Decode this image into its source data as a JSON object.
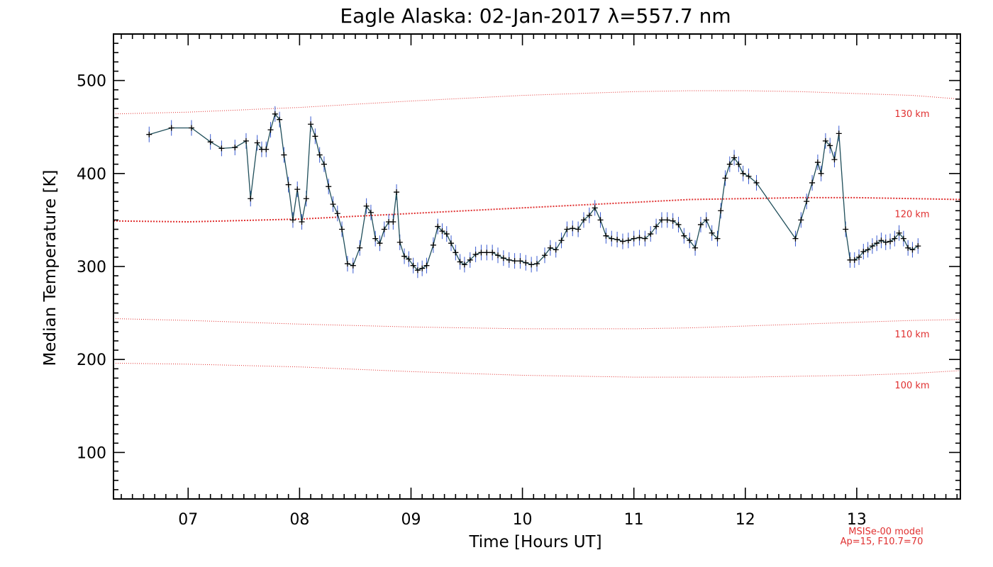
{
  "chart_data": {
    "type": "line",
    "title": "Eagle Alaska: 02-Jan-2017 λ=557.7 nm",
    "xlabel": "Time [Hours UT]",
    "ylabel": "Median Temperature [K]",
    "xlim": [
      6.33,
      13.93
    ],
    "ylim": [
      50,
      550
    ],
    "x_ticks": [
      7,
      8,
      9,
      10,
      11,
      12,
      13
    ],
    "x_tick_labels": [
      "07",
      "08",
      "09",
      "10",
      "11",
      "12",
      "13"
    ],
    "y_ticks": [
      100,
      200,
      300,
      400,
      500
    ],
    "y_tick_labels": [
      "100",
      "200",
      "300",
      "400",
      "500"
    ],
    "grid": false,
    "colors": {
      "data_line": "#1f4e5a",
      "error_bar": "#3a5bd0",
      "model_line": "#e03030",
      "marker": "#000000"
    },
    "series": [
      {
        "points": [
          [
            6.65,
            442
          ],
          [
            6.85,
            449
          ],
          [
            7.03,
            449
          ],
          [
            7.2,
            434
          ],
          [
            7.3,
            427
          ],
          [
            7.42,
            428
          ],
          [
            7.52,
            435
          ],
          [
            7.56,
            373
          ],
          [
            7.62,
            433
          ],
          [
            7.66,
            426
          ],
          [
            7.7,
            426
          ],
          [
            7.74,
            447
          ],
          [
            7.78,
            464
          ],
          [
            7.82,
            458
          ],
          [
            7.86,
            420
          ],
          [
            7.9,
            388
          ],
          [
            7.94,
            350
          ],
          [
            7.98,
            383
          ],
          [
            8.02,
            348
          ],
          [
            8.06,
            373
          ],
          [
            8.1,
            453
          ],
          [
            8.14,
            440
          ],
          [
            8.18,
            420
          ],
          [
            8.22,
            410
          ],
          [
            8.26,
            386
          ],
          [
            8.3,
            367
          ],
          [
            8.34,
            357
          ],
          [
            8.38,
            340
          ],
          [
            8.43,
            303
          ],
          [
            8.48,
            301
          ],
          [
            8.54,
            320
          ],
          [
            8.6,
            365
          ],
          [
            8.64,
            358
          ],
          [
            8.68,
            330
          ],
          [
            8.72,
            325
          ],
          [
            8.76,
            340
          ],
          [
            8.8,
            348
          ],
          [
            8.84,
            348
          ],
          [
            8.87,
            380
          ],
          [
            8.9,
            326
          ],
          [
            8.94,
            311
          ],
          [
            8.98,
            308
          ],
          [
            9.02,
            301
          ],
          [
            9.06,
            296
          ],
          [
            9.1,
            298
          ],
          [
            9.14,
            301
          ],
          [
            9.2,
            323
          ],
          [
            9.24,
            343
          ],
          [
            9.28,
            338
          ],
          [
            9.32,
            335
          ],
          [
            9.36,
            325
          ],
          [
            9.4,
            315
          ],
          [
            9.44,
            305
          ],
          [
            9.48,
            302
          ],
          [
            9.53,
            307
          ],
          [
            9.58,
            313
          ],
          [
            9.63,
            315
          ],
          [
            9.68,
            315
          ],
          [
            9.73,
            315
          ],
          [
            9.78,
            312
          ],
          [
            9.83,
            309
          ],
          [
            9.88,
            307
          ],
          [
            9.93,
            306
          ],
          [
            9.98,
            306
          ],
          [
            10.03,
            304
          ],
          [
            10.08,
            302
          ],
          [
            10.13,
            303
          ],
          [
            10.2,
            312
          ],
          [
            10.25,
            320
          ],
          [
            10.3,
            318
          ],
          [
            10.35,
            328
          ],
          [
            10.4,
            340
          ],
          [
            10.45,
            341
          ],
          [
            10.5,
            340
          ],
          [
            10.55,
            350
          ],
          [
            10.6,
            355
          ],
          [
            10.65,
            363
          ],
          [
            10.7,
            350
          ],
          [
            10.75,
            333
          ],
          [
            10.8,
            330
          ],
          [
            10.85,
            329
          ],
          [
            10.9,
            327
          ],
          [
            10.95,
            328
          ],
          [
            11.0,
            330
          ],
          [
            11.05,
            331
          ],
          [
            11.1,
            330
          ],
          [
            11.15,
            335
          ],
          [
            11.2,
            343
          ],
          [
            11.25,
            350
          ],
          [
            11.3,
            350
          ],
          [
            11.35,
            349
          ],
          [
            11.4,
            345
          ],
          [
            11.45,
            333
          ],
          [
            11.5,
            328
          ],
          [
            11.55,
            320
          ],
          [
            11.6,
            345
          ],
          [
            11.65,
            350
          ],
          [
            11.7,
            336
          ],
          [
            11.75,
            330
          ],
          [
            11.78,
            360
          ],
          [
            11.82,
            395
          ],
          [
            11.86,
            410
          ],
          [
            11.9,
            417
          ],
          [
            11.94,
            410
          ],
          [
            11.98,
            400
          ],
          [
            12.03,
            397
          ],
          [
            12.1,
            390
          ],
          [
            12.45,
            330
          ],
          [
            12.5,
            350
          ],
          [
            12.55,
            370
          ],
          [
            12.6,
            390
          ],
          [
            12.65,
            412
          ],
          [
            12.68,
            400
          ],
          [
            12.72,
            435
          ],
          [
            12.76,
            430
          ],
          [
            12.8,
            415
          ],
          [
            12.84,
            443
          ],
          [
            12.9,
            340
          ],
          [
            12.94,
            307
          ],
          [
            12.98,
            307
          ],
          [
            13.02,
            310
          ],
          [
            13.06,
            316
          ],
          [
            13.1,
            318
          ],
          [
            13.14,
            322
          ],
          [
            13.18,
            325
          ],
          [
            13.22,
            328
          ],
          [
            13.26,
            326
          ],
          [
            13.3,
            327
          ],
          [
            13.34,
            330
          ],
          [
            13.38,
            336
          ],
          [
            13.42,
            330
          ],
          [
            13.46,
            320
          ],
          [
            13.5,
            318
          ],
          [
            13.55,
            322
          ]
        ]
      }
    ],
    "model_lines": [
      {
        "label": "130 km",
        "x": [
          6.33,
          7.0,
          8.0,
          9.0,
          10.0,
          11.0,
          11.5,
          12.0,
          12.5,
          13.0,
          13.5,
          13.93
        ],
        "y": [
          464,
          466,
          471,
          478,
          484,
          488,
          489,
          489,
          488,
          486,
          484,
          480
        ]
      },
      {
        "label": "120 km",
        "x": [
          6.33,
          7.0,
          8.0,
          9.0,
          10.0,
          11.0,
          11.5,
          12.0,
          12.5,
          13.0,
          13.5,
          13.93
        ],
        "y": [
          349,
          348,
          351,
          357,
          363,
          369,
          372,
          373,
          374,
          374,
          373,
          372
        ]
      },
      {
        "label": "110 km",
        "x": [
          6.33,
          7.0,
          8.0,
          9.0,
          10.0,
          11.0,
          11.5,
          12.0,
          12.5,
          13.0,
          13.5,
          13.93
        ],
        "y": [
          244,
          242,
          238,
          235,
          233,
          233,
          234,
          236,
          238,
          240,
          242,
          243
        ]
      },
      {
        "label": "100 km",
        "x": [
          6.33,
          7.0,
          8.0,
          9.0,
          10.0,
          11.0,
          11.5,
          12.0,
          12.5,
          13.0,
          13.5,
          13.93
        ],
        "y": [
          196,
          195,
          192,
          187,
          183,
          181,
          181,
          181,
          182,
          183,
          185,
          188
        ]
      }
    ],
    "annotations": [
      "MSISe-00 model",
      "Ap=15, F10.7=70"
    ]
  }
}
